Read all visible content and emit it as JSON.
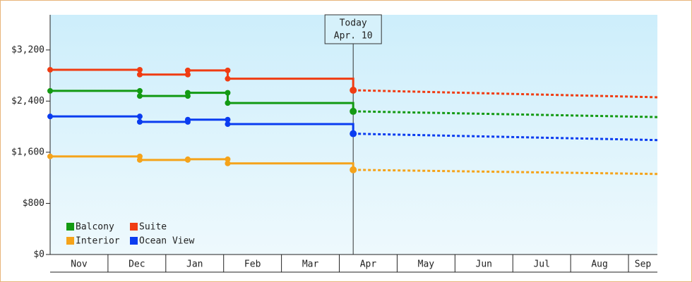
{
  "chart_data": {
    "type": "step-line",
    "categories": [
      "Nov",
      "Dec",
      "Jan",
      "Feb",
      "Mar",
      "Apr",
      "May",
      "Jun",
      "Jul",
      "Aug",
      "Sep"
    ],
    "x": [
      0,
      1.55,
      2.38,
      3.07
    ],
    "forecast_x": [
      5.24,
      10.5
    ],
    "today_x": 5.24,
    "today_label": {
      "title": "Today",
      "date": "Apr. 10"
    },
    "xlim": [
      0,
      10.5
    ],
    "ylim": [
      0,
      3750
    ],
    "yticks": [
      {
        "value": 0,
        "label": "$0"
      },
      {
        "value": 800,
        "label": "$800"
      },
      {
        "value": 1600,
        "label": "$1,600"
      },
      {
        "value": 2400,
        "label": "$2,400"
      },
      {
        "value": 3200,
        "label": "$3,200"
      }
    ],
    "series": [
      {
        "name": "Balcony",
        "color": "#139a13",
        "values": [
          2560,
          2480,
          2530,
          2370
        ],
        "forecast_values": [
          2240,
          2150
        ]
      },
      {
        "name": "Suite",
        "color": "#f03c12",
        "values": [
          2890,
          2815,
          2880,
          2750
        ],
        "forecast_values": [
          2570,
          2460
        ]
      },
      {
        "name": "Interior",
        "color": "#f5a31a",
        "values": [
          1535,
          1480,
          1490,
          1425
        ],
        "forecast_values": [
          1325,
          1260
        ]
      },
      {
        "name": "Ocean View",
        "color": "#0a3cf0",
        "values": [
          2160,
          2075,
          2110,
          2040
        ],
        "forecast_values": [
          1890,
          1790
        ]
      }
    ]
  }
}
